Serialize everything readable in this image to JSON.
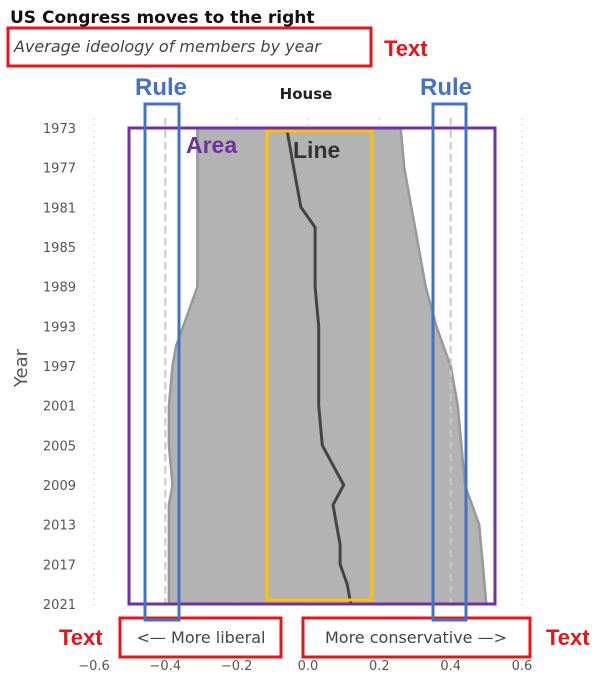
{
  "chart_data": {
    "type": "area",
    "title": "US Congress moves to the right",
    "subtitle": "Average ideology of members by year",
    "facet_label": "House",
    "ylabel": "Year",
    "xlabel": "",
    "xlim": [
      -0.6,
      0.6
    ],
    "x_ticks": [
      "−0.6",
      "−0.4",
      "−0.2",
      "0.0",
      "0.2",
      "0.4",
      "0.6"
    ],
    "x_tick_values": [
      -0.6,
      -0.4,
      -0.2,
      0.0,
      0.2,
      0.4,
      0.6
    ],
    "ylim": [
      1973,
      2021
    ],
    "y_ticks": [
      1973,
      1977,
      1981,
      1985,
      1989,
      1993,
      1997,
      2001,
      2005,
      2009,
      2013,
      2017,
      2021
    ],
    "y_reversed": true,
    "rules": [
      -0.4,
      0.4
    ],
    "direction_labels": {
      "left": "<— More liberal",
      "right": "More conservative —>"
    },
    "area": {
      "years": [
        1973,
        1977,
        1981,
        1985,
        1989,
        1993,
        1995,
        1997,
        2001,
        2005,
        2009,
        2011,
        2013,
        2017,
        2021
      ],
      "low": [
        -0.31,
        -0.31,
        -0.31,
        -0.31,
        -0.31,
        -0.35,
        -0.37,
        -0.38,
        -0.39,
        -0.39,
        -0.38,
        -0.39,
        -0.39,
        -0.39,
        -0.39
      ],
      "high": [
        0.26,
        0.27,
        0.29,
        0.31,
        0.33,
        0.36,
        0.38,
        0.4,
        0.42,
        0.43,
        0.44,
        0.46,
        0.48,
        0.49,
        0.5
      ]
    },
    "line": {
      "years": [
        1973,
        1975,
        1977,
        1979,
        1981,
        1983,
        1985,
        1989,
        1993,
        1997,
        2001,
        2005,
        2007,
        2009,
        2011,
        2013,
        2015,
        2017,
        2019,
        2021
      ],
      "values": [
        -0.06,
        -0.05,
        -0.04,
        -0.03,
        -0.02,
        0.02,
        0.02,
        0.02,
        0.03,
        0.03,
        0.03,
        0.04,
        0.07,
        0.1,
        0.07,
        0.08,
        0.09,
        0.09,
        0.11,
        0.12
      ]
    },
    "series_colors": {
      "area_fill": "#b3b3b3",
      "area_stroke": "#999999",
      "line": "#444444",
      "rule": "#c8c8c8"
    }
  },
  "annotations": {
    "text_labels": [
      "Text",
      "Text",
      "Text"
    ],
    "rule_labels": [
      "Rule",
      "Rule"
    ],
    "area_label": "Area",
    "line_label": "Line",
    "colors": {
      "text_box": "#e8141c",
      "rule_box": "#4472c4",
      "area_box": "#7030a0",
      "line_box": "#ffc000"
    }
  }
}
